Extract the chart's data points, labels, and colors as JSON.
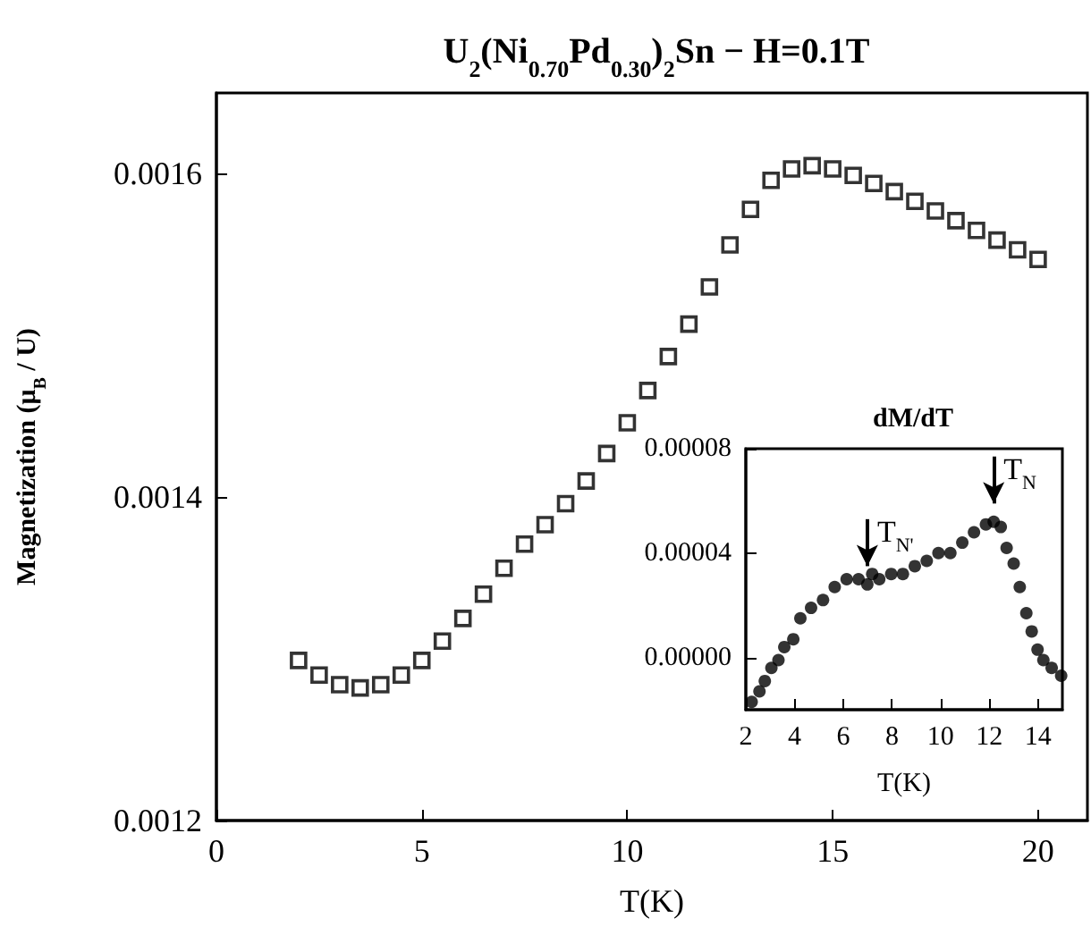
{
  "chart_data": [
    {
      "type": "scatter",
      "title": "U$_{2}$(Ni$_{0.70}$Pd$_{0.30}$)$_{2}$Sn − H=0.1T",
      "xlabel": "T(K)",
      "ylabel": "Magnetization (μ$_{B}$ / U)",
      "marker": "square",
      "xlim": [
        0,
        21.2
      ],
      "xticks": [
        0,
        5,
        10,
        15,
        20
      ],
      "ylim": [
        0.0012,
        0.00165
      ],
      "yticks": [
        0.0012,
        0.0014,
        0.0016
      ],
      "series": [
        {
          "color": "#000000",
          "x": [
            2.0,
            2.5,
            3.0,
            3.5,
            4.0,
            4.5,
            5.0,
            5.5,
            6.0,
            6.5,
            7.0,
            7.5,
            8.0,
            8.5,
            9.0,
            9.5,
            10.0,
            10.5,
            11.0,
            11.5,
            12.0,
            12.5,
            13.0,
            13.5,
            14.0,
            14.5,
            15.0,
            15.5,
            16.0,
            16.5,
            17.0,
            17.5,
            18.0,
            18.5,
            19.0,
            19.5,
            20.0
          ],
          "values": [
            0.001299,
            0.00129,
            0.001284,
            0.001282,
            0.001284,
            0.00129,
            0.001299,
            0.001311,
            0.001325,
            0.00134,
            0.001356,
            0.001371,
            0.001383,
            0.001396,
            0.00141,
            0.001427,
            0.001446,
            0.001466,
            0.001487,
            0.001507,
            0.00153,
            0.001556,
            0.001578,
            0.001596,
            0.001603,
            0.001605,
            0.001603,
            0.001599,
            0.001594,
            0.001589,
            0.001583,
            0.001577,
            0.001571,
            0.001565,
            0.001559,
            0.001553,
            0.001547
          ]
        }
      ]
    },
    {
      "type": "scatter",
      "title": "dM/dT",
      "xlabel": "T(K)",
      "marker": "circle",
      "xlim": [
        2,
        15
      ],
      "xticks": [
        2,
        4,
        6,
        8,
        10,
        12,
        14
      ],
      "ylim": [
        -2e-05,
        8e-05
      ],
      "yticks": [
        {
          "value": 0,
          "label": "0.00000"
        },
        {
          "value": 4e-05,
          "label": "0.00004"
        },
        {
          "value": 8e-05,
          "label": "0.00008"
        }
      ],
      "annotations": [
        {
          "text": "T$_{N'}$",
          "x": 6.99,
          "y": 2.8e-05
        },
        {
          "text": "T$_{N}$",
          "x": 12.18,
          "y": 5.2e-05
        }
      ],
      "series": [
        {
          "color": "#000000",
          "x": [
            2.24,
            2.56,
            2.78,
            3.05,
            3.34,
            3.58,
            3.95,
            4.24,
            4.68,
            5.17,
            5.65,
            6.14,
            6.63,
            6.99,
            7.19,
            7.48,
            7.97,
            8.45,
            8.94,
            9.43,
            9.91,
            10.4,
            10.89,
            11.37,
            11.86,
            12.18,
            12.47,
            12.71,
            13.0,
            13.25,
            13.52,
            13.74,
            13.98,
            14.22,
            14.56,
            14.95
          ],
          "values": [
            -1.7e-05,
            -1.3e-05,
            -9e-06,
            -4e-06,
            -1e-06,
            4e-06,
            7e-06,
            1.5e-05,
            1.9e-05,
            2.2e-05,
            2.7e-05,
            3e-05,
            3e-05,
            2.8e-05,
            3.2e-05,
            3e-05,
            3.2e-05,
            3.2e-05,
            3.5e-05,
            3.7e-05,
            4e-05,
            4e-05,
            4.4e-05,
            4.8e-05,
            5.1e-05,
            5.2e-05,
            5e-05,
            4.2e-05,
            3.6e-05,
            2.7e-05,
            1.7e-05,
            1e-05,
            3e-06,
            -1e-06,
            -4e-06,
            -7e-06
          ]
        }
      ]
    }
  ]
}
